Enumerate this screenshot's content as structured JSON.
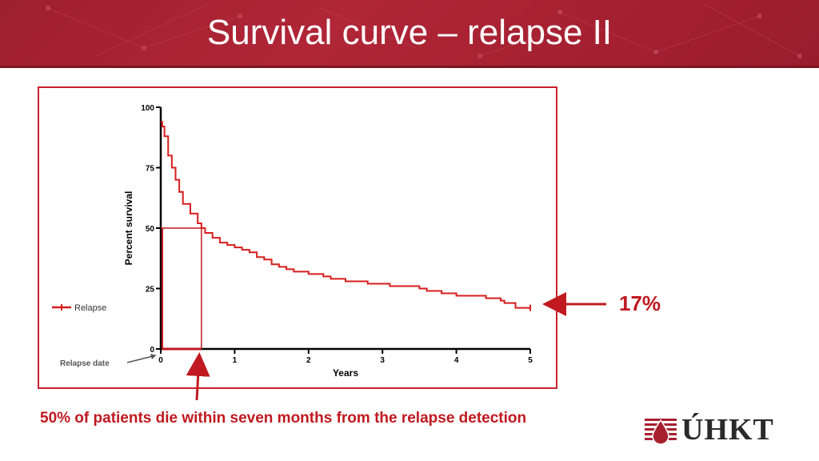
{
  "slide": {
    "title": "Survival curve – relapse II",
    "note": "50% of patients die within seven months from the relapse detection",
    "callout_value": "17%",
    "logo_text": "ÚHKT"
  },
  "colors": {
    "brand": "#a8202f",
    "series": "#d81e1e",
    "annotation": "#c0191f",
    "axis": "#000000"
  },
  "chart_data": {
    "type": "line",
    "title": "",
    "xlabel": "Years",
    "ylabel": "Percent survival",
    "xlim": [
      0,
      5
    ],
    "ylim": [
      0,
      100
    ],
    "xticks": [
      "0",
      "1",
      "2",
      "3",
      "4",
      "5"
    ],
    "yticks": [
      "0",
      "25",
      "50",
      "75",
      "100"
    ],
    "legend": {
      "position": "left",
      "entries": [
        "Relapse"
      ]
    },
    "annotations": {
      "relapse_label": "Relapse date",
      "median_time_years": 0.55
    },
    "series": [
      {
        "name": "Relapse",
        "x": [
          0,
          0.02,
          0.05,
          0.1,
          0.15,
          0.2,
          0.25,
          0.3,
          0.4,
          0.5,
          0.55,
          0.6,
          0.7,
          0.8,
          0.9,
          1.0,
          1.1,
          1.2,
          1.3,
          1.4,
          1.5,
          1.6,
          1.7,
          1.8,
          2.0,
          2.2,
          2.3,
          2.5,
          2.8,
          3.0,
          3.1,
          3.5,
          3.6,
          3.8,
          4.0,
          4.2,
          4.4,
          4.5,
          4.6,
          4.65,
          4.8,
          5.0
        ],
        "y": [
          94,
          92,
          88,
          80,
          75,
          70,
          65,
          60,
          56,
          52,
          50,
          48,
          46,
          44,
          43,
          42,
          41,
          40,
          38,
          37,
          35,
          34,
          33,
          32,
          31,
          30,
          29,
          28,
          27,
          27,
          26,
          25,
          24,
          23,
          22,
          22,
          21,
          21,
          20,
          19,
          17,
          17
        ]
      }
    ]
  }
}
